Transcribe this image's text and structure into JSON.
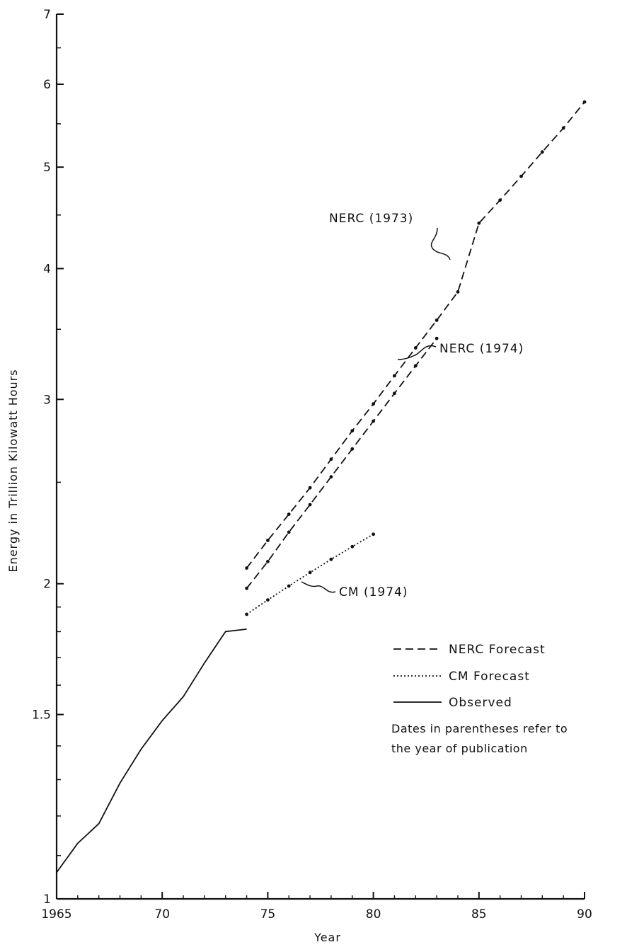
{
  "chart_data": {
    "type": "line",
    "xlabel": "Year",
    "ylabel": "Energy in Trillion Kilowatt Hours",
    "y_scale": "log",
    "xlim": [
      1965,
      1990
    ],
    "ylim": [
      1,
      7
    ],
    "x_ticks": [
      1965,
      1970,
      1975,
      1980,
      1985,
      1990
    ],
    "x_tick_labels": [
      "1965",
      "70",
      "75",
      "80",
      "85",
      "90"
    ],
    "y_ticks": [
      1,
      1.5,
      2,
      3,
      4,
      5,
      6,
      7
    ],
    "y_tick_labels": [
      "1",
      "1.5",
      "2",
      "3",
      "4",
      "5",
      "6",
      "7"
    ],
    "series": [
      {
        "name": "NERC (1973)",
        "style": "dashed",
        "x": [
          1974,
          1975,
          1976,
          1977,
          1978,
          1979,
          1980,
          1981,
          1982,
          1983,
          1984,
          1985,
          1986,
          1987,
          1988,
          1989,
          1990
        ],
        "y": [
          2.07,
          2.2,
          2.33,
          2.47,
          2.63,
          2.8,
          2.97,
          3.16,
          3.36,
          3.57,
          3.8,
          4.42,
          4.65,
          4.9,
          5.17,
          5.45,
          5.77
        ]
      },
      {
        "name": "NERC (1974)",
        "style": "dashed",
        "x": [
          1974,
          1975,
          1976,
          1977,
          1978,
          1979,
          1980,
          1981,
          1982,
          1983
        ],
        "y": [
          1.98,
          2.1,
          2.24,
          2.38,
          2.53,
          2.69,
          2.86,
          3.04,
          3.23,
          3.43
        ]
      },
      {
        "name": "CM (1974)",
        "style": "dotted",
        "x": [
          1974,
          1975,
          1976,
          1977,
          1978,
          1979,
          1980
        ],
        "y": [
          1.87,
          1.93,
          1.99,
          2.05,
          2.11,
          2.17,
          2.23
        ]
      },
      {
        "name": "Observed",
        "style": "solid",
        "x": [
          1965,
          1966,
          1967,
          1968,
          1969,
          1970,
          1971,
          1972,
          1973,
          1974
        ],
        "y": [
          1.06,
          1.13,
          1.18,
          1.29,
          1.39,
          1.48,
          1.56,
          1.68,
          1.8,
          1.81
        ]
      }
    ],
    "annotations": [
      "NERC (1973)",
      "NERC (1974)",
      "CM (1974)"
    ],
    "legend": {
      "placement": "right",
      "entries": [
        {
          "label": "NERC Forecast",
          "style": "dashed"
        },
        {
          "label": "CM Forecast",
          "style": "dotted"
        },
        {
          "label": "Observed",
          "style": "solid"
        }
      ],
      "note_line1": "Dates in parentheses refer to",
      "note_line2": "the year of publication"
    },
    "grid": false
  }
}
